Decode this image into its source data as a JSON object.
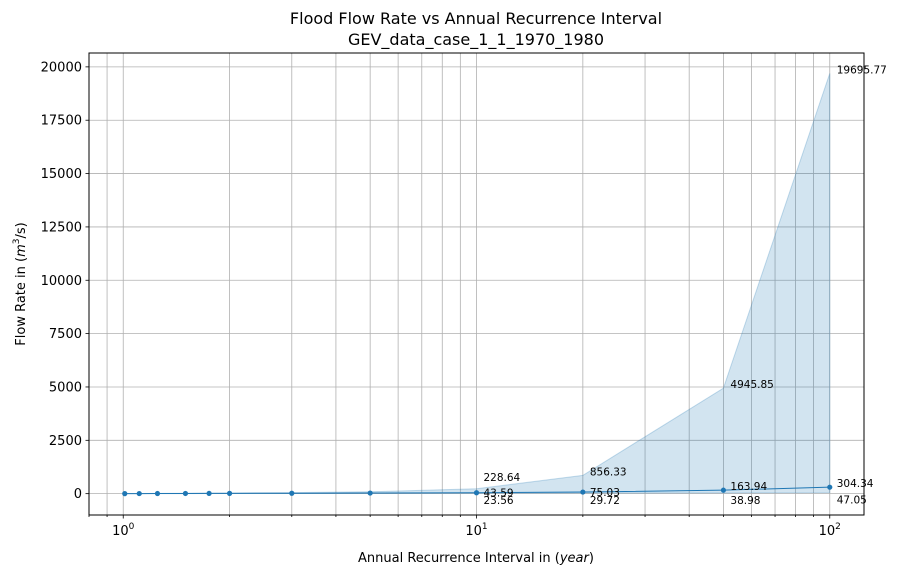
{
  "chart_data": {
    "type": "line",
    "title": "Flood Flow Rate vs Annual Recurrence Interval",
    "subtitle": "GEV_data_case_1_1_1970_1980",
    "xlabel_prefix": "Annual Recurrence Interval in (",
    "xlabel_unit": "year",
    "xlabel_suffix": ")",
    "ylabel_prefix": "Flow Rate in (",
    "ylabel_unit_base": "m",
    "ylabel_unit_exp": "3",
    "ylabel_unit_tail": "/s)",
    "xscale": "log",
    "xlim": [
      0.8,
      125
    ],
    "ylim": [
      -1000,
      20650
    ],
    "grid": true,
    "x_ticks": [
      {
        "value": 1,
        "base": "10",
        "exp": "0"
      },
      {
        "value": 10,
        "base": "10",
        "exp": "1"
      },
      {
        "value": 100,
        "base": "10",
        "exp": "2"
      }
    ],
    "y_ticks": [
      0,
      2500,
      5000,
      7500,
      10000,
      12500,
      15000,
      17500,
      20000
    ],
    "y_tick_labels": [
      "0",
      "2500",
      "5000",
      "7500",
      "10000",
      "12500",
      "15000",
      "17500",
      "20000"
    ],
    "series": [
      {
        "x": [
          1.01,
          1.11,
          1.25,
          1.5,
          1.75,
          2,
          3,
          5,
          10,
          20,
          50,
          100
        ],
        "y": [
          2,
          4,
          6,
          9,
          12,
          14,
          20,
          28,
          43.59,
          75.03,
          163.94,
          304.34
        ],
        "lower": [
          0,
          1,
          2,
          3,
          5,
          6,
          9,
          14,
          23.56,
          29.72,
          38.98,
          47.05
        ],
        "upper": [
          5,
          8,
          12,
          18,
          24,
          30,
          50,
          90,
          228.64,
          856.33,
          4945.85,
          19695.77
        ],
        "color": "#1f77b4",
        "band_color": "#1f77b4"
      }
    ],
    "annotations": [
      {
        "x": 10,
        "y": 228.64,
        "text": "228.64",
        "dy": -8
      },
      {
        "x": 10,
        "y": 43.59,
        "text": "43.59",
        "dy": 4
      },
      {
        "x": 10,
        "y": 23.56,
        "text": "23.56",
        "dy": 11
      },
      {
        "x": 20,
        "y": 856.33,
        "text": "856.33",
        "dy": 0
      },
      {
        "x": 20,
        "y": 75.03,
        "text": "75.03",
        "dy": 4
      },
      {
        "x": 20,
        "y": 29.72,
        "text": "29.72",
        "dy": 11
      },
      {
        "x": 50,
        "y": 4945.85,
        "text": "4945.85",
        "dy": 0
      },
      {
        "x": 50,
        "y": 163.94,
        "text": "163.94",
        "dy": 0
      },
      {
        "x": 50,
        "y": 38.98,
        "text": "38.98",
        "dy": 11
      },
      {
        "x": 100,
        "y": 19695.77,
        "text": "19695.77",
        "dy": 0
      },
      {
        "x": 100,
        "y": 304.34,
        "text": "304.34",
        "dy": 0
      },
      {
        "x": 100,
        "y": 47.05,
        "text": "47.05",
        "dy": 11
      }
    ]
  }
}
